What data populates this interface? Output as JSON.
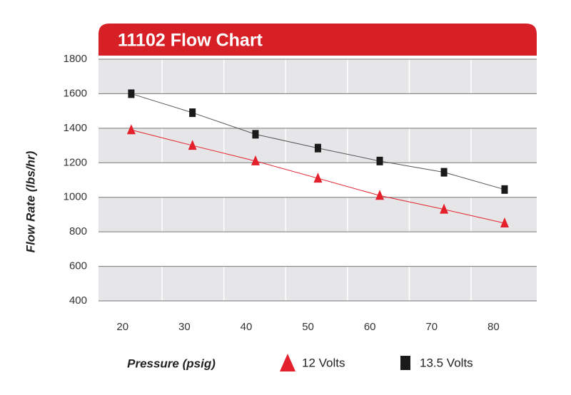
{
  "chart_data": {
    "type": "line",
    "title": "11102 Flow Chart",
    "x_label": "Pressure (psig)",
    "y_label": "Flow Rate (lbs/hr)",
    "x": [
      21.4,
      31.3,
      41.5,
      51.6,
      61.6,
      72,
      81.8
    ],
    "series": [
      {
        "name": "12 Volts",
        "color": "#e3202b",
        "marker": "triangle",
        "values": [
          1390,
          1300,
          1210,
          1110,
          1010,
          930,
          850
        ]
      },
      {
        "name": "13.5 Volts",
        "color": "#1a1a1a",
        "marker": "square",
        "values": [
          1600,
          1490,
          1365,
          1285,
          1210,
          1145,
          1045
        ]
      }
    ],
    "xlim": [
      16.1,
      87
    ],
    "xticks": [
      20,
      30,
      40,
      50,
      60,
      70,
      80
    ],
    "ylim": [
      400,
      1800
    ],
    "yticks": [
      400,
      600,
      800,
      1000,
      1200,
      1400,
      1600,
      1800
    ],
    "grid": true
  }
}
